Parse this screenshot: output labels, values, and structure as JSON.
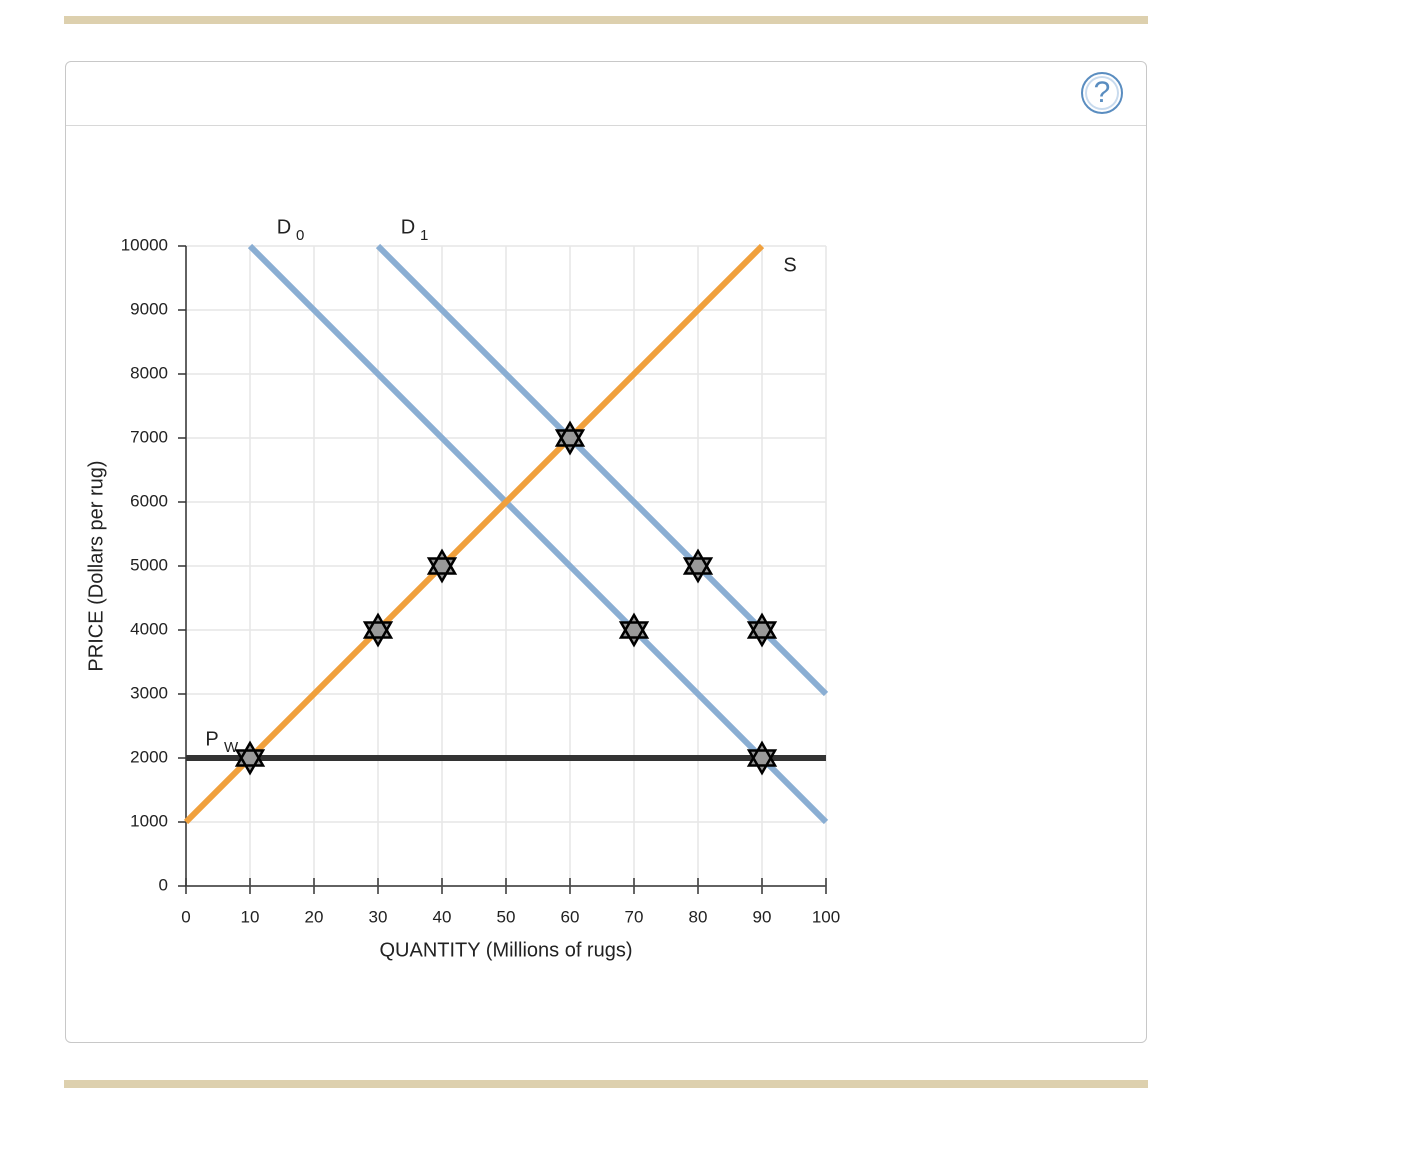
{
  "help_button": "?",
  "chart_data": {
    "type": "line",
    "x_label": "QUANTITY (Millions of rugs)",
    "y_label": "PRICE (Dollars per rug)",
    "xlim": [
      0,
      100
    ],
    "xticks": [
      0,
      10,
      20,
      30,
      40,
      50,
      60,
      70,
      80,
      90,
      100
    ],
    "ylim": [
      0,
      10000
    ],
    "yticks": [
      0,
      1000,
      2000,
      3000,
      4000,
      5000,
      6000,
      7000,
      8000,
      9000,
      10000
    ],
    "grid": true,
    "series": [
      {
        "name": "D",
        "subscript": "0",
        "color": "#8aaed3",
        "x": [
          10,
          100
        ],
        "values": [
          10000,
          1000
        ]
      },
      {
        "name": "D",
        "subscript": "1",
        "color": "#8aaed3",
        "x": [
          30,
          100
        ],
        "values": [
          10000,
          3000
        ]
      },
      {
        "name": "S",
        "color": "#f0a03c",
        "x": [
          0,
          90
        ],
        "values": [
          1000,
          10000
        ]
      },
      {
        "name": "P",
        "subscript": "W",
        "color": "#333333",
        "x": [
          0,
          100
        ],
        "values": [
          2000,
          2000
        ]
      }
    ],
    "points": {
      "color": "#999999",
      "x": [
        10,
        30,
        40,
        60,
        70,
        80,
        90,
        90
      ],
      "y": [
        2000,
        4000,
        5000,
        7000,
        4000,
        5000,
        4000,
        2000
      ]
    }
  }
}
